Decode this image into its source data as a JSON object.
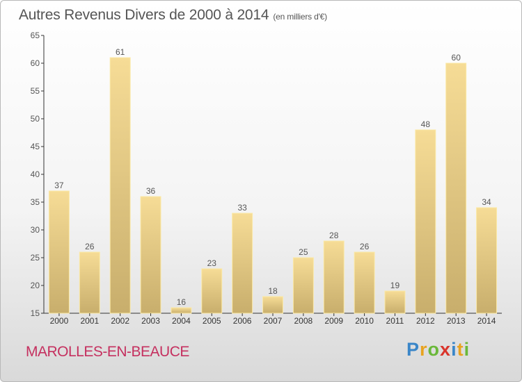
{
  "chart_data": {
    "type": "bar",
    "title": "Autres Revenus Divers de 2000 à 2014",
    "subtitle": "(en milliers d'€)",
    "categories": [
      "2000",
      "2001",
      "2002",
      "2003",
      "2004",
      "2005",
      "2006",
      "2007",
      "2008",
      "2009",
      "2010",
      "2011",
      "2012",
      "2013",
      "2014"
    ],
    "values": [
      37,
      26,
      61,
      36,
      16,
      23,
      33,
      18,
      25,
      28,
      26,
      19,
      48,
      60,
      34
    ],
    "ylim": [
      15,
      65
    ],
    "yticks": [
      15,
      20,
      25,
      30,
      35,
      40,
      45,
      50,
      55,
      60,
      65
    ],
    "grid": false,
    "bar_color": "#e8cf86",
    "label_color": "#555555"
  },
  "footer": {
    "commune": "MAROLLES-EN-BEAUCE",
    "commune_color": "#c5305f"
  },
  "logo": {
    "letters": [
      "P",
      "r",
      "o",
      "x",
      "i",
      "t",
      "i"
    ],
    "colors": [
      "#3a86c8",
      "#e8a320",
      "#6ab83a",
      "#d9342b",
      "#3a86c8",
      "#e8a320",
      "#6ab83a"
    ]
  }
}
